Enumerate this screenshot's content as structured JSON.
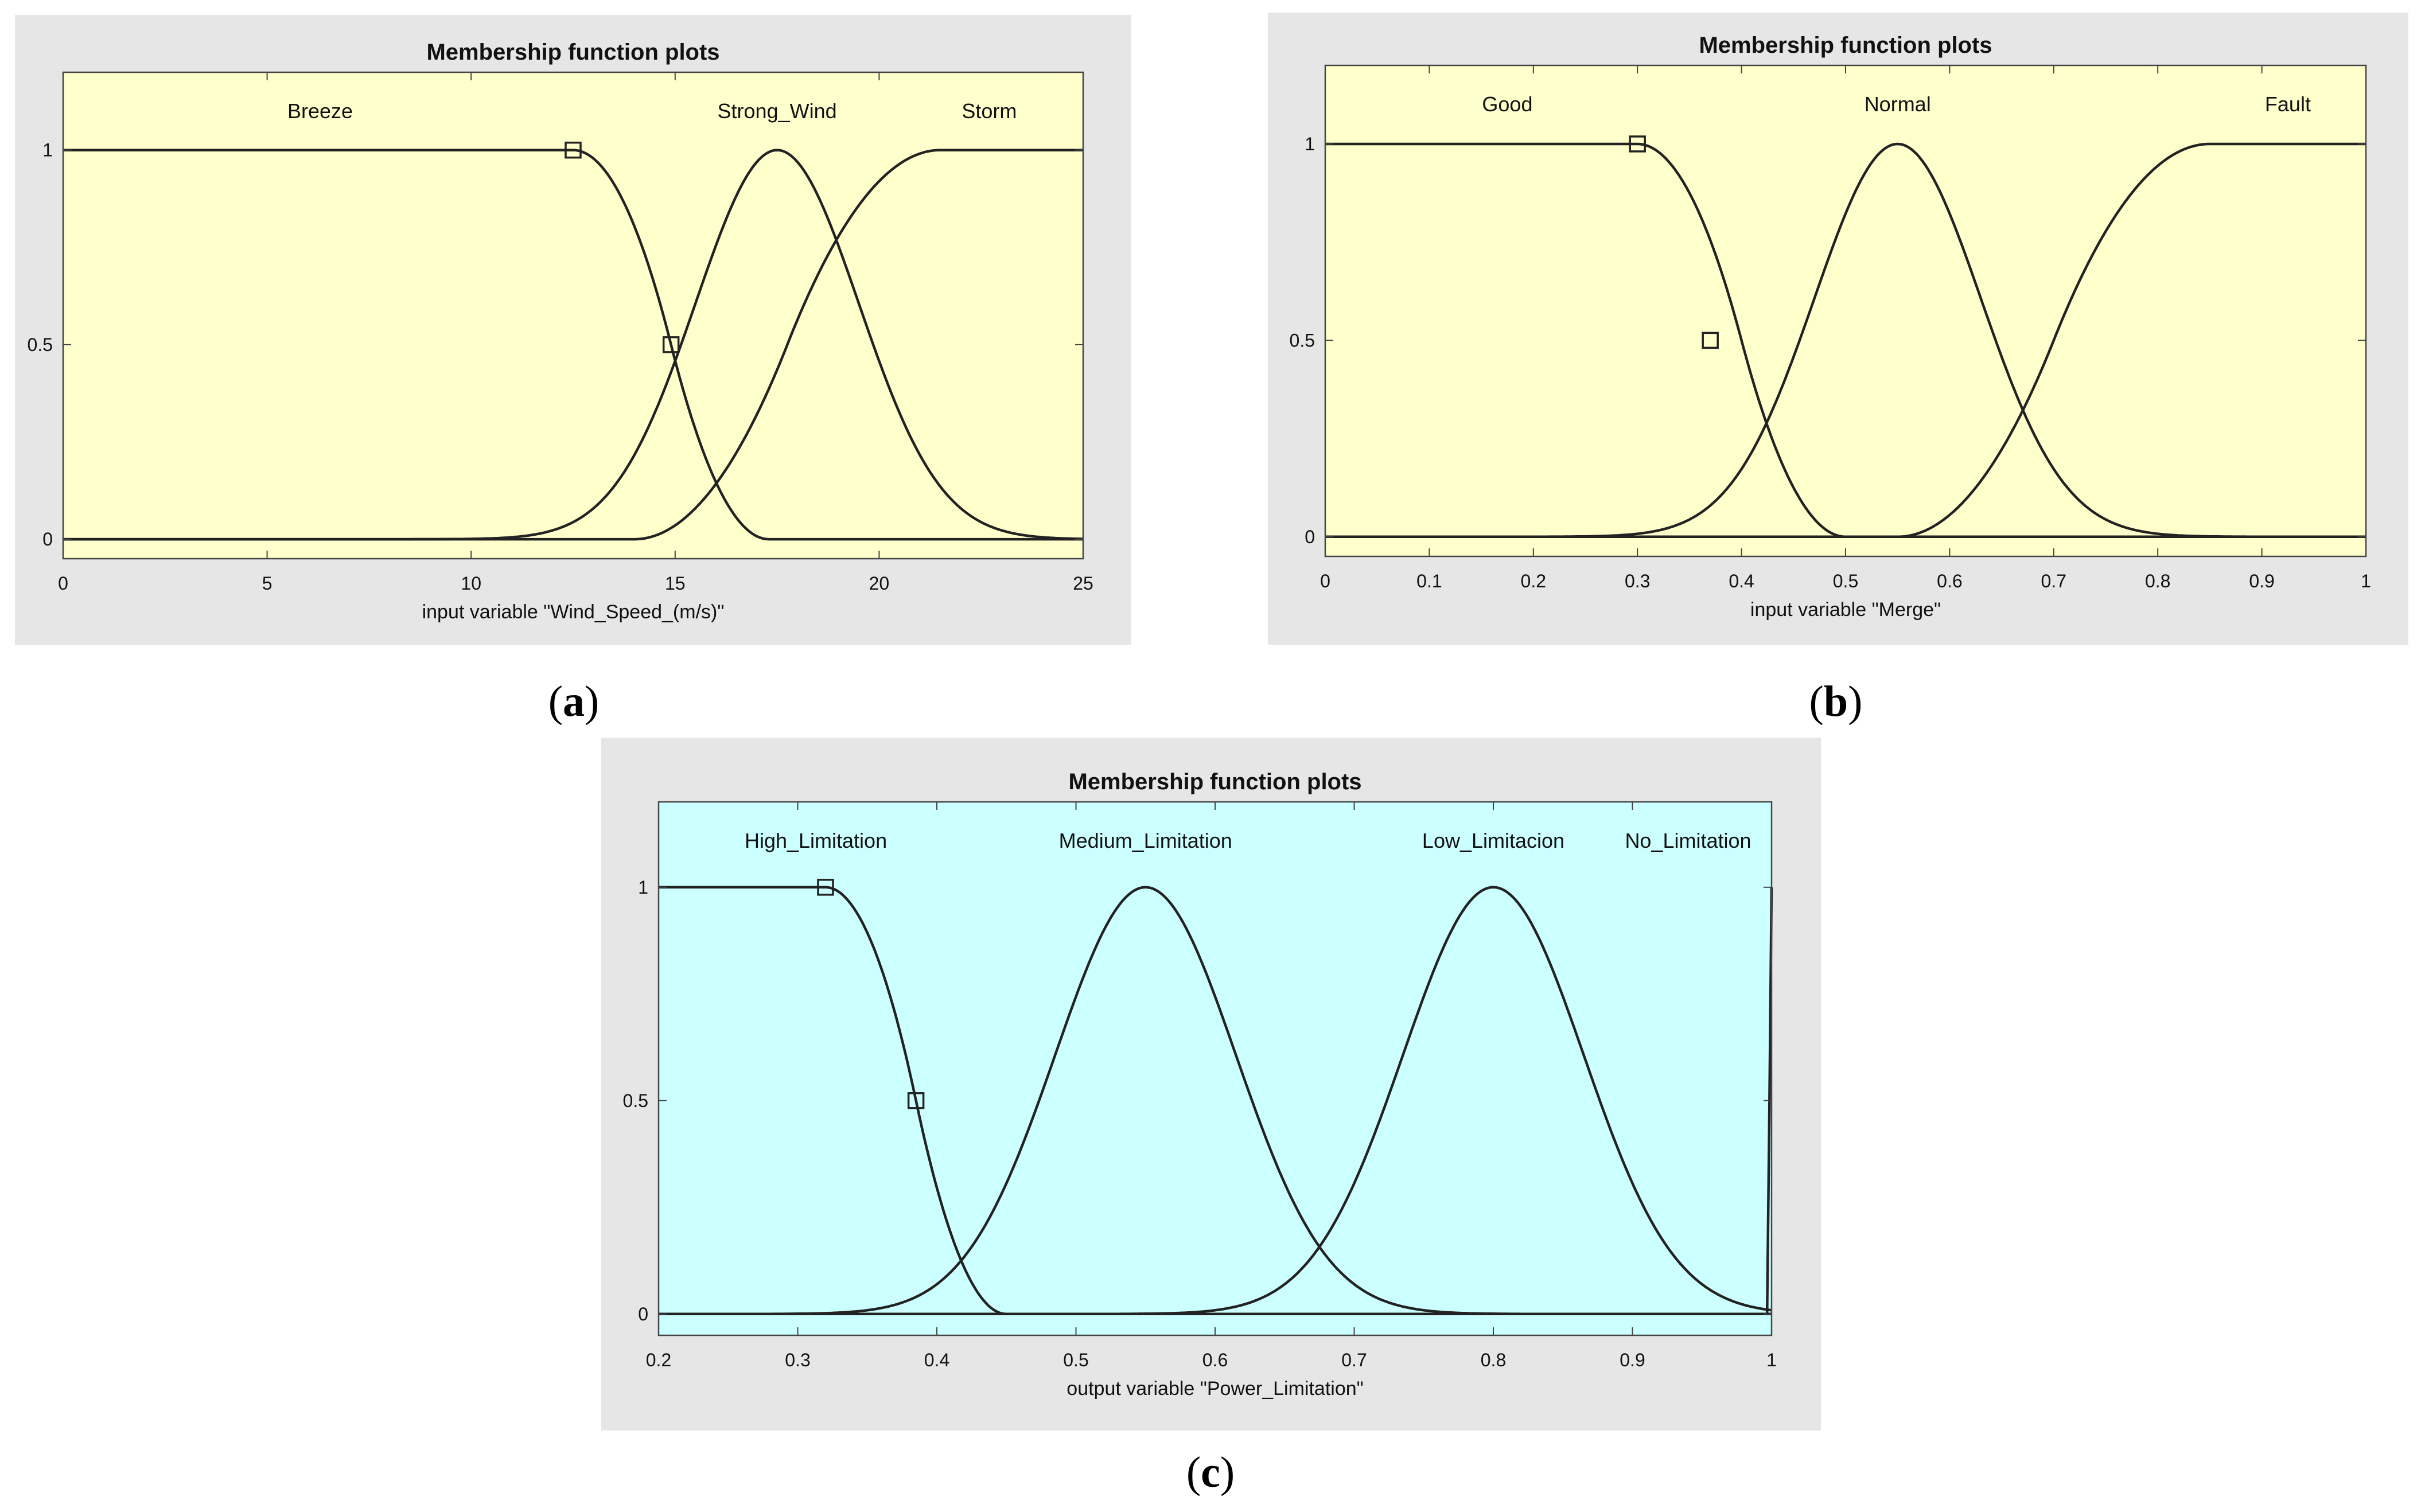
{
  "chart_data": [
    {
      "type": "line",
      "subfigure_label": "a",
      "title": "Membership function plots",
      "xlabel": "input variable \"Wind_Speed_(m/s)\"",
      "ylabel": "",
      "xlim": [
        0,
        25
      ],
      "ylim": [
        -0.05,
        1.2
      ],
      "x_ticks": [
        0,
        5,
        10,
        15,
        20,
        25
      ],
      "y_ticks": [
        0,
        0.5,
        1
      ],
      "background": "#ffffcc",
      "grid": false,
      "series": [
        {
          "name": "Breeze",
          "shape": "z-shaped",
          "params": [
            12.5,
            17.3
          ],
          "label_x": 6.3
        },
        {
          "name": "Strong_Wind",
          "shape": "gaussian",
          "params": [
            17.5,
            2.0
          ],
          "label_x": 17.5
        },
        {
          "name": "Storm",
          "shape": "s-shaped",
          "params": [
            14.0,
            21.5
          ],
          "label_x": 22.7
        }
      ],
      "markers": [
        {
          "x": 12.5,
          "y": 1
        },
        {
          "x": 14.9,
          "y": 0.5
        }
      ]
    },
    {
      "type": "line",
      "subfigure_label": "b",
      "title": "Membership function plots",
      "xlabel": "input variable \"Merge\"",
      "ylabel": "",
      "xlim": [
        0,
        1
      ],
      "ylim": [
        -0.05,
        1.2
      ],
      "x_ticks": [
        0,
        0.1,
        0.2,
        0.3,
        0.4,
        0.5,
        0.6,
        0.7,
        0.8,
        0.9,
        1
      ],
      "y_ticks": [
        0,
        0.5,
        1
      ],
      "background": "#ffffcc",
      "grid": false,
      "series": [
        {
          "name": "Good",
          "shape": "z-shaped",
          "params": [
            0.3,
            0.5
          ],
          "label_x": 0.175
        },
        {
          "name": "Normal",
          "shape": "gaussian",
          "params": [
            0.55,
            0.08
          ],
          "label_x": 0.55
        },
        {
          "name": "Fault",
          "shape": "s-shaped",
          "params": [
            0.55,
            0.85
          ],
          "label_x": 0.925
        }
      ],
      "markers": [
        {
          "x": 0.3,
          "y": 1
        },
        {
          "x": 0.37,
          "y": 0.5
        }
      ]
    },
    {
      "type": "line",
      "subfigure_label": "c",
      "title": "Membership function plots",
      "xlabel": "output variable \"Power_Limitation\"",
      "ylabel": "",
      "xlim": [
        0.2,
        1
      ],
      "ylim": [
        -0.05,
        1.2
      ],
      "x_ticks": [
        0.2,
        0.3,
        0.4,
        0.5,
        0.6,
        0.7,
        0.8,
        0.9,
        1
      ],
      "y_ticks": [
        0,
        0.5,
        1
      ],
      "background": "#ccffff",
      "grid": false,
      "series": [
        {
          "name": "High_Limitation",
          "shape": "z-shaped",
          "params": [
            0.32,
            0.45
          ],
          "label_x": 0.313
        },
        {
          "name": "Medium_Limitation",
          "shape": "gaussian",
          "params": [
            0.55,
            0.065
          ],
          "label_x": 0.55
        },
        {
          "name": "Low_Limitacion",
          "shape": "gaussian",
          "params": [
            0.8,
            0.065
          ],
          "label_x": 0.8
        },
        {
          "name": "No_Limitation",
          "shape": "spike",
          "params": [
            0.997,
            1.0
          ],
          "label_x": 0.94
        }
      ],
      "markers": [
        {
          "x": 0.32,
          "y": 1
        },
        {
          "x": 0.385,
          "y": 0.5
        }
      ]
    }
  ]
}
